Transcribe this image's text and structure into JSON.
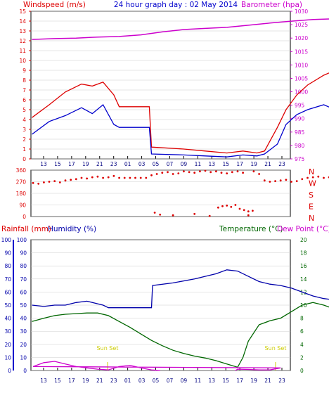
{
  "header": {
    "wind_title": "Windspeed (m/s)",
    "main_title": "24 hour graph day : 02 May 2014",
    "baro_title": "Barometer (hpa)"
  },
  "lower_header": {
    "rain_title": "Rainfall (mm)",
    "humidity_title": "Humidity (%)",
    "temp_title": "Temperature (°C)",
    "dew_title": "Dew Point (°C)"
  },
  "direction_labels": [
    "N",
    "W",
    "S",
    "E",
    "N"
  ],
  "hour_ticks": [
    "13",
    "15",
    "17",
    "19",
    "21",
    "23",
    "01",
    "03",
    "05",
    "07",
    "09",
    "11",
    "13",
    "15",
    "17",
    "19",
    "21",
    "23"
  ],
  "annotations": {
    "sunset_1": "Sun Set",
    "sunset_2": "Sun Set"
  },
  "colors": {
    "wind_gust": "#dd0000",
    "wind_avg": "#0000cc",
    "barometer": "#cc00cc",
    "direction": "#dd0000",
    "humidity": "#0000aa",
    "temperature": "#006600",
    "dew_point": "#cc00cc",
    "grid": "#cccccc",
    "sunset": "#cccc00"
  },
  "chart_data": [
    {
      "type": "line",
      "x_unit": "hour of day",
      "series": [
        {
          "name": "Wind gust",
          "x": [
            11.9,
            13.5,
            15,
            16.5,
            17.5,
            18.5,
            19.5,
            20.0,
            22.8,
            23.0,
            2,
            4,
            6,
            7.5,
            8.8,
            9.5,
            10.7,
            11.5,
            12.5,
            13.5,
            15,
            16.5,
            17.5,
            18.5,
            19.5,
            20.5,
            21.5,
            22.5,
            23.3,
            23.8
          ],
          "y": [
            4.2,
            5.5,
            6.8,
            7.6,
            7.4,
            7.8,
            6.5,
            5.3,
            5.3,
            1.2,
            1.0,
            0.8,
            0.6,
            0.8,
            0.6,
            0.8,
            3.2,
            5.0,
            6.5,
            7.5,
            8.5,
            9.2,
            8.5,
            9.6,
            8.8,
            8.0,
            6.5,
            6.0,
            5.4,
            4.3
          ]
        },
        {
          "name": "Wind average",
          "x": [
            11.9,
            13.5,
            15,
            16.5,
            17.5,
            18.5,
            19.5,
            20.0,
            22.8,
            23.0,
            2,
            4,
            6,
            7.5,
            8.8,
            9.5,
            10.7,
            11.5,
            12.5,
            13.5,
            15,
            16.5,
            17.5,
            18.5,
            19.5,
            20.5,
            21.5,
            22.5,
            23.3,
            23.8
          ],
          "y": [
            2.5,
            3.8,
            4.4,
            5.2,
            4.6,
            5.5,
            3.5,
            3.2,
            3.2,
            0.5,
            0.4,
            0.3,
            0.2,
            0.4,
            0.3,
            0.5,
            1.5,
            3.5,
            4.5,
            5.0,
            5.5,
            4.8,
            5.3,
            5.0,
            5.5,
            4.8,
            4.5,
            3.5,
            3.0,
            2.5
          ]
        },
        {
          "name": "Barometer",
          "x": [
            11.9,
            14,
            16,
            18,
            20,
            22,
            0,
            2,
            4,
            6,
            8,
            10,
            12,
            14,
            16,
            18,
            20,
            22,
            23.8
          ],
          "y": [
            1019.5,
            1019.8,
            1020,
            1020.4,
            1020.6,
            1021.2,
            1022.3,
            1023.2,
            1023.6,
            1024,
            1024.8,
            1025.6,
            1026.3,
            1026.9,
            1027.2,
            1027.6,
            1028,
            1028.6,
            1029
          ]
        }
      ],
      "y_left": {
        "label": "Windspeed (m/s)",
        "range": [
          0,
          15
        ],
        "ticks": [
          0,
          1,
          2,
          3,
          4,
          5,
          6,
          7,
          8,
          9,
          10,
          11,
          12,
          13,
          14,
          15
        ]
      },
      "y_right": {
        "label": "Barometer (hpa)",
        "range": [
          975,
          1030
        ],
        "ticks": [
          975,
          980,
          985,
          990,
          995,
          1000,
          1005,
          1010,
          1015,
          1020,
          1025,
          1030
        ]
      },
      "grid": true
    },
    {
      "type": "scatter",
      "name": "Wind direction",
      "x": [
        12,
        12.5,
        13,
        13.5,
        14,
        14.5,
        15,
        15.5,
        16,
        16.5,
        17,
        17.5,
        18,
        18.5,
        19,
        19.5,
        20,
        20.5,
        21,
        21.5,
        22,
        22.5,
        23,
        23.5,
        0,
        0.5,
        1,
        1.5,
        2,
        2.5,
        3,
        3.5,
        4,
        4.5,
        5,
        5.5,
        6,
        6.5,
        7,
        7.5,
        8,
        8.5,
        9,
        9.5,
        10,
        10.5,
        11,
        11.5,
        12,
        12.5,
        13,
        13.5,
        14,
        14.5,
        15,
        15.5,
        16,
        16.5,
        17,
        17.5,
        18,
        18.5,
        19,
        19.5,
        20,
        20.5,
        21,
        21.5,
        22,
        22.5,
        23,
        23.5,
        5.2,
        5.6,
        6.0,
        6.4,
        6.8,
        7.2,
        7.6,
        8.0,
        8.4,
        1.0,
        3.0,
        4.4,
        23.3,
        23.8
      ],
      "y": [
        260,
        255,
        265,
        270,
        275,
        265,
        280,
        285,
        290,
        300,
        295,
        305,
        310,
        300,
        305,
        315,
        300,
        300,
        300,
        300,
        300,
        300,
        320,
        330,
        340,
        345,
        330,
        335,
        350,
        345,
        340,
        350,
        355,
        345,
        350,
        340,
        335,
        345,
        350,
        340,
        10,
        350,
        330,
        280,
        270,
        275,
        280,
        285,
        270,
        275,
        290,
        300,
        305,
        310,
        300,
        305,
        310,
        315,
        320,
        300,
        305,
        310,
        315,
        320,
        325,
        310,
        315,
        320,
        320,
        315,
        310,
        320,
        70,
        80,
        85,
        75,
        90,
        60,
        50,
        40,
        45,
        10,
        20,
        5,
        30,
        15
      ],
      "y_range": [
        0,
        360
      ],
      "y_ticks": [
        0,
        90,
        180,
        270,
        360
      ],
      "compass_labels": [
        "N",
        "W",
        "S",
        "E",
        "N"
      ]
    },
    {
      "type": "line",
      "x_unit": "hour of day",
      "series": [
        {
          "name": "Humidity",
          "axis": "humidity",
          "x": [
            11.9,
            13,
            14,
            15,
            16,
            17,
            18,
            18.5,
            19,
            20,
            21,
            22,
            23,
            23.1,
            1,
            3,
            5,
            6,
            7,
            8,
            9,
            10,
            11,
            12,
            13,
            14,
            15,
            16,
            17,
            18,
            19,
            20,
            21,
            22,
            23,
            23.8
          ],
          "y": [
            50,
            49,
            50,
            50,
            52,
            53,
            51,
            50,
            48,
            48,
            48,
            48,
            48,
            65,
            67,
            70,
            74,
            77,
            76,
            72,
            68,
            66,
            65,
            63,
            60,
            57,
            55,
            54,
            53,
            54,
            56,
            58,
            62,
            67,
            70,
            70
          ]
        },
        {
          "name": "Temperature",
          "axis": "temperature",
          "x": [
            11.9,
            13,
            14,
            15,
            16,
            17,
            18,
            19,
            20,
            21,
            22,
            23,
            0,
            1,
            2,
            3,
            4,
            5,
            6,
            7,
            7.5,
            8,
            9,
            10,
            11,
            12,
            13,
            14,
            15,
            16,
            17,
            18,
            19,
            20,
            21,
            22,
            23,
            23.8
          ],
          "y": [
            7.5,
            8.0,
            8.4,
            8.6,
            8.7,
            8.8,
            8.8,
            8.4,
            7.5,
            6.6,
            5.6,
            4.6,
            3.8,
            3.1,
            2.6,
            2.2,
            1.9,
            1.5,
            1.0,
            0.5,
            2.0,
            4.5,
            7.0,
            7.6,
            8.0,
            9.0,
            10.0,
            10.4,
            10.0,
            9.4,
            9.0,
            8.6,
            8.0,
            7.5,
            6.5,
            5.8,
            5.0,
            4.6
          ]
        },
        {
          "name": "Dew Point",
          "axis": "rainfall",
          "x": [
            6.8,
            7,
            8,
            9,
            10,
            11,
            12,
            13,
            14,
            15,
            16,
            17,
            18,
            19,
            20,
            21,
            22,
            23,
            23.8
          ],
          "y": [
            0,
            1,
            0.8,
            0.5,
            0.5,
            2,
            3,
            6,
            7,
            5,
            3,
            2,
            1,
            0.5,
            3,
            4,
            2,
            0.5,
            0
          ]
        }
      ],
      "y_left_outer": {
        "label": "Rainfall (mm)",
        "range": [
          0,
          100
        ],
        "ticks": [
          0,
          10,
          20,
          30,
          40,
          50,
          60,
          70,
          80,
          90,
          100
        ]
      },
      "y_left_inner": {
        "label": "Humidity (%)",
        "range": [
          0,
          100
        ],
        "ticks": [
          0,
          10,
          20,
          30,
          40,
          50,
          60,
          70,
          80,
          90,
          100
        ]
      },
      "y_right": {
        "label": "Temperature (°C)",
        "range": [
          0,
          20
        ],
        "ticks": [
          0,
          2,
          4,
          6,
          8,
          10,
          12,
          14,
          16,
          18,
          20
        ]
      },
      "grid": true
    }
  ]
}
